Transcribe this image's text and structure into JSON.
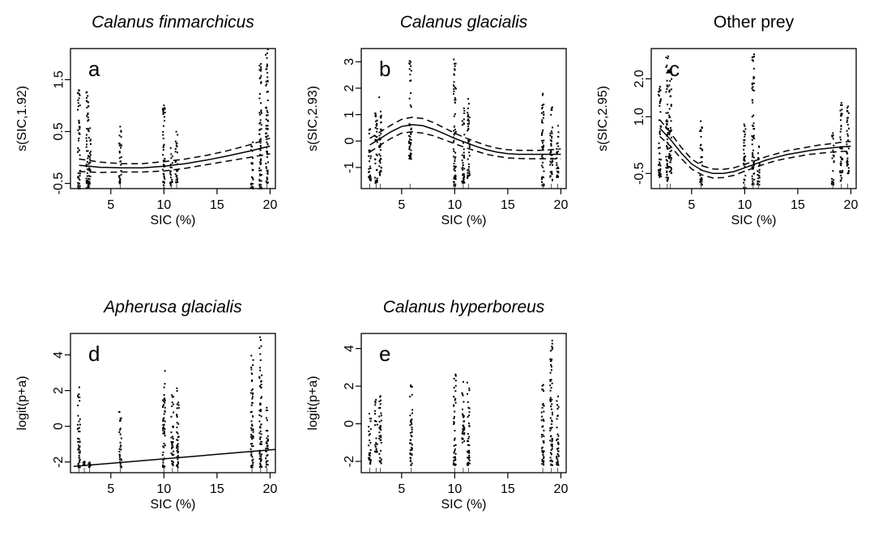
{
  "chart_data": [
    {
      "panel": "a",
      "type": "line",
      "title": "Calanus finmarchicus",
      "title_italic": true,
      "xlabel": "SIC (%)",
      "ylabel": "s(SIC,1.92)",
      "xlim": [
        1.2,
        20.5
      ],
      "ylim": [
        -0.6,
        2.1
      ],
      "xticks": [
        5,
        10,
        15,
        20
      ],
      "xtick_labels": [
        "5",
        "10",
        "15",
        "20"
      ],
      "yticks": [
        -0.5,
        0.5,
        1.5
      ],
      "ytick_labels": [
        "-0.5",
        "0.5",
        "1.5"
      ],
      "series": [
        {
          "role": "fit",
          "style": "solid",
          "x": [
            2,
            3,
            4,
            6,
            8,
            10,
            12,
            14,
            16,
            18,
            20
          ],
          "y": [
            -0.15,
            -0.17,
            -0.19,
            -0.2,
            -0.2,
            -0.17,
            -0.12,
            -0.05,
            0.03,
            0.12,
            0.22
          ]
        },
        {
          "role": "ci-upper",
          "style": "dashed",
          "x": [
            2,
            3,
            4,
            6,
            8,
            10,
            12,
            14,
            16,
            18,
            20
          ],
          "y": [
            -0.03,
            -0.06,
            -0.09,
            -0.12,
            -0.12,
            -0.08,
            -0.03,
            0.04,
            0.13,
            0.24,
            0.37
          ]
        },
        {
          "role": "ci-lower",
          "style": "dashed",
          "x": [
            2,
            3,
            4,
            6,
            8,
            10,
            12,
            14,
            16,
            18,
            20
          ],
          "y": [
            -0.27,
            -0.28,
            -0.29,
            -0.28,
            -0.28,
            -0.26,
            -0.21,
            -0.14,
            -0.07,
            0.0,
            0.07
          ]
        }
      ],
      "residual_columns": [
        {
          "x": 2.0,
          "ymin": -0.6,
          "ymax": 1.3
        },
        {
          "x": 2.8,
          "ymin": -0.6,
          "ymax": 1.3
        },
        {
          "x": 3.0,
          "ymin": -0.6,
          "ymax": 0.6
        },
        {
          "x": 5.9,
          "ymin": -0.5,
          "ymax": 0.65
        },
        {
          "x": 10.0,
          "ymin": -0.6,
          "ymax": 1.05
        },
        {
          "x": 10.7,
          "ymin": -0.55,
          "ymax": 0.35
        },
        {
          "x": 11.2,
          "ymin": -0.5,
          "ymax": 0.5
        },
        {
          "x": 18.3,
          "ymin": -0.6,
          "ymax": 0.35
        },
        {
          "x": 19.1,
          "ymin": -0.6,
          "ymax": 1.9
        },
        {
          "x": 19.7,
          "ymin": -0.5,
          "ymax": 2.1
        }
      ]
    },
    {
      "panel": "b",
      "type": "line",
      "title": "Calanus glacialis",
      "title_italic": true,
      "xlabel": "SIC (%)",
      "ylabel": "s(SIC,2.93)",
      "xlim": [
        1.2,
        20.5
      ],
      "ylim": [
        -1.8,
        3.5
      ],
      "xticks": [
        5,
        10,
        15,
        20
      ],
      "xtick_labels": [
        "5",
        "10",
        "15",
        "20"
      ],
      "yticks": [
        -1,
        0,
        1,
        2,
        3
      ],
      "ytick_labels": [
        "-1",
        "0",
        "1",
        "2",
        "3"
      ],
      "series": [
        {
          "role": "fit",
          "style": "solid",
          "x": [
            2,
            3,
            4,
            5,
            6,
            7,
            8,
            9,
            10,
            11,
            12,
            13,
            14,
            15,
            16,
            17,
            18,
            19,
            20
          ],
          "y": [
            -0.15,
            0.1,
            0.35,
            0.55,
            0.62,
            0.58,
            0.45,
            0.28,
            0.1,
            -0.05,
            -0.2,
            -0.33,
            -0.42,
            -0.48,
            -0.5,
            -0.5,
            -0.5,
            -0.5,
            -0.5
          ]
        },
        {
          "role": "ci-upper",
          "style": "dashed",
          "x": [
            2,
            3,
            4,
            5,
            6,
            7,
            8,
            9,
            10,
            11,
            12,
            13,
            14,
            15,
            16,
            17,
            18,
            19,
            20
          ],
          "y": [
            0.1,
            0.35,
            0.6,
            0.82,
            0.9,
            0.85,
            0.7,
            0.5,
            0.3,
            0.12,
            -0.03,
            -0.17,
            -0.27,
            -0.33,
            -0.35,
            -0.35,
            -0.35,
            -0.33,
            -0.3
          ]
        },
        {
          "role": "ci-lower",
          "style": "dashed",
          "x": [
            2,
            3,
            4,
            5,
            6,
            7,
            8,
            9,
            10,
            11,
            12,
            13,
            14,
            15,
            16,
            17,
            18,
            19,
            20
          ],
          "y": [
            -0.42,
            -0.15,
            0.1,
            0.3,
            0.35,
            0.3,
            0.2,
            0.05,
            -0.1,
            -0.25,
            -0.38,
            -0.5,
            -0.58,
            -0.64,
            -0.66,
            -0.67,
            -0.67,
            -0.67,
            -0.68
          ]
        }
      ],
      "residual_columns": [
        {
          "x": 2.0,
          "ymin": -1.5,
          "ymax": 0.5
        },
        {
          "x": 2.6,
          "ymin": -1.6,
          "ymax": 1.2
        },
        {
          "x": 3.0,
          "ymin": -1.3,
          "ymax": 1.7
        },
        {
          "x": 5.8,
          "ymin": -0.7,
          "ymax": 3.2
        },
        {
          "x": 10.0,
          "ymin": -1.7,
          "ymax": 3.4
        },
        {
          "x": 10.8,
          "ymin": -1.6,
          "ymax": 1.3
        },
        {
          "x": 11.3,
          "ymin": -1.4,
          "ymax": 1.7
        },
        {
          "x": 18.3,
          "ymin": -1.7,
          "ymax": 1.9
        },
        {
          "x": 19.1,
          "ymin": -1.5,
          "ymax": 1.6
        },
        {
          "x": 19.7,
          "ymin": -1.4,
          "ymax": 0.6
        }
      ]
    },
    {
      "panel": "c",
      "type": "line",
      "title": "Other prey",
      "title_italic": false,
      "xlabel": "SIC (%)",
      "ylabel": "s(SIC,2.95)",
      "xlim": [
        1.2,
        20.5
      ],
      "ylim": [
        -0.9,
        2.8
      ],
      "xticks": [
        5,
        10,
        15,
        20
      ],
      "xtick_labels": [
        "5",
        "10",
        "15",
        "20"
      ],
      "yticks": [
        -0.5,
        1.0,
        2.0
      ],
      "ytick_labels": [
        "-0.5",
        "1.0",
        "2.0"
      ],
      "series": [
        {
          "role": "fit",
          "style": "solid",
          "x": [
            2,
            3,
            4,
            5,
            6,
            7,
            8,
            9,
            10,
            11,
            12,
            13,
            14,
            15,
            16,
            17,
            18,
            19,
            20
          ],
          "y": [
            0.7,
            0.4,
            0.05,
            -0.25,
            -0.42,
            -0.5,
            -0.5,
            -0.45,
            -0.35,
            -0.25,
            -0.15,
            -0.07,
            0.0,
            0.05,
            0.1,
            0.14,
            0.17,
            0.2,
            0.22
          ]
        },
        {
          "role": "ci-upper",
          "style": "dashed",
          "x": [
            2,
            3,
            4,
            5,
            6,
            7,
            8,
            9,
            10,
            11,
            12,
            13,
            14,
            15,
            16,
            17,
            18,
            19,
            20
          ],
          "y": [
            0.92,
            0.58,
            0.2,
            -0.12,
            -0.3,
            -0.38,
            -0.39,
            -0.35,
            -0.26,
            -0.16,
            -0.06,
            0.02,
            0.1,
            0.15,
            0.2,
            0.25,
            0.28,
            0.32,
            0.35
          ]
        },
        {
          "role": "ci-lower",
          "style": "dashed",
          "x": [
            2,
            3,
            4,
            5,
            6,
            7,
            8,
            9,
            10,
            11,
            12,
            13,
            14,
            15,
            16,
            17,
            18,
            19,
            20
          ],
          "y": [
            0.48,
            0.22,
            -0.1,
            -0.38,
            -0.54,
            -0.62,
            -0.61,
            -0.55,
            -0.44,
            -0.34,
            -0.24,
            -0.16,
            -0.1,
            -0.05,
            0.0,
            0.03,
            0.06,
            0.08,
            0.09
          ]
        }
      ],
      "residual_columns": [
        {
          "x": 2.0,
          "ymin": -0.6,
          "ymax": 1.8
        },
        {
          "x": 2.7,
          "ymin": -0.7,
          "ymax": 2.6
        },
        {
          "x": 3.0,
          "ymin": -0.5,
          "ymax": 2.3
        },
        {
          "x": 5.9,
          "ymin": -0.8,
          "ymax": 0.9
        },
        {
          "x": 10.0,
          "ymin": -0.9,
          "ymax": 0.8
        },
        {
          "x": 10.8,
          "ymin": -0.8,
          "ymax": 2.7
        },
        {
          "x": 11.3,
          "ymin": -0.8,
          "ymax": 0.4
        },
        {
          "x": 18.3,
          "ymin": -0.8,
          "ymax": 0.6
        },
        {
          "x": 19.1,
          "ymin": -0.7,
          "ymax": 1.4
        },
        {
          "x": 19.7,
          "ymin": -0.5,
          "ymax": 1.4
        }
      ]
    },
    {
      "panel": "d",
      "type": "line",
      "title": "Apherusa glacialis",
      "title_italic": true,
      "xlabel": "SIC (%)",
      "ylabel": "logit(p+a)",
      "xlim": [
        1.2,
        20.5
      ],
      "ylim": [
        -2.6,
        5.2
      ],
      "xticks": [
        5,
        10,
        15,
        20
      ],
      "xtick_labels": [
        "5",
        "10",
        "15",
        "20"
      ],
      "yticks": [
        -2,
        0,
        2,
        4
      ],
      "ytick_labels": [
        "-2",
        "0",
        "2",
        "4"
      ],
      "series": [
        {
          "role": "fit",
          "style": "solid",
          "x": [
            1.5,
            20.5
          ],
          "y": [
            -2.25,
            -1.3
          ]
        }
      ],
      "residual_columns": [
        {
          "x": 2.0,
          "ymin": -2.3,
          "ymax": 2.7
        },
        {
          "x": 2.5,
          "ymin": -2.2,
          "ymax": -1.9
        },
        {
          "x": 3.0,
          "ymin": -2.3,
          "ymax": -2.0
        },
        {
          "x": 5.9,
          "ymin": -2.3,
          "ymax": 1.0
        },
        {
          "x": 10.0,
          "ymin": -2.3,
          "ymax": 3.2
        },
        {
          "x": 10.8,
          "ymin": -2.2,
          "ymax": 1.8
        },
        {
          "x": 11.3,
          "ymin": -2.3,
          "ymax": 2.2
        },
        {
          "x": 18.3,
          "ymin": -2.3,
          "ymax": 4.0
        },
        {
          "x": 19.1,
          "ymin": -2.3,
          "ymax": 5.0
        },
        {
          "x": 19.7,
          "ymin": -2.3,
          "ymax": 1.3
        }
      ]
    },
    {
      "panel": "e",
      "type": "scatter",
      "title": "Calanus hyperboreus",
      "title_italic": true,
      "xlabel": "SIC (%)",
      "ylabel": "logit(p+a)",
      "xlim": [
        1.2,
        20.5
      ],
      "ylim": [
        -2.6,
        4.8
      ],
      "xticks": [
        5,
        10,
        15,
        20
      ],
      "xtick_labels": [
        "5",
        "10",
        "15",
        "20"
      ],
      "yticks": [
        -2,
        0,
        2,
        4
      ],
      "ytick_labels": [
        "-2",
        "0",
        "2",
        "4"
      ],
      "series": [],
      "residual_columns": [
        {
          "x": 2.0,
          "ymin": -2.2,
          "ymax": 0.8
        },
        {
          "x": 2.6,
          "ymin": -1.5,
          "ymax": 1.3
        },
        {
          "x": 3.0,
          "ymin": -2.2,
          "ymax": 1.5
        },
        {
          "x": 5.9,
          "ymin": -2.2,
          "ymax": 2.3
        },
        {
          "x": 10.0,
          "ymin": -2.2,
          "ymax": 2.7
        },
        {
          "x": 10.8,
          "ymin": -1.0,
          "ymax": 2.5
        },
        {
          "x": 11.3,
          "ymin": -2.2,
          "ymax": 2.2
        },
        {
          "x": 18.3,
          "ymin": -2.2,
          "ymax": 2.5
        },
        {
          "x": 19.1,
          "ymin": -2.2,
          "ymax": 4.5
        },
        {
          "x": 19.7,
          "ymin": -2.2,
          "ymax": 1.6
        }
      ]
    }
  ]
}
